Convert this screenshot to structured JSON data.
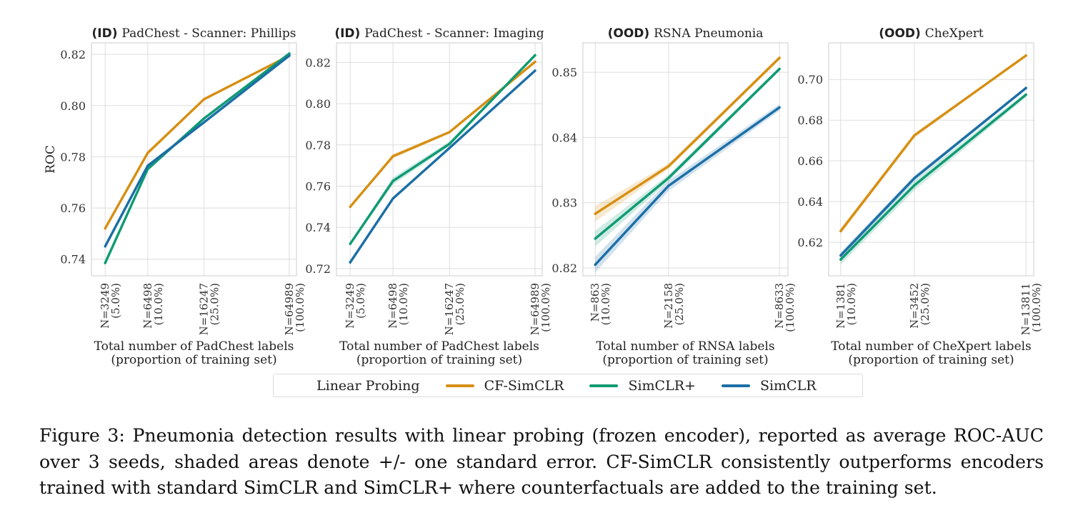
{
  "colors": {
    "CF-SimCLR": "#d68f12",
    "SimCLR+": "#0f9a73",
    "SimCLR": "#1b6ea6",
    "grid": "#dddddd",
    "axes": "#cccccc"
  },
  "legend": {
    "title": "Linear Probing",
    "items": [
      {
        "label": "CF-SimCLR",
        "color": "#d68f12"
      },
      {
        "label": "SimCLR+",
        "color": "#0f9a73"
      },
      {
        "label": "SimCLR",
        "color": "#1b6ea6"
      }
    ]
  },
  "caption": "Figure 3: Pneumonia detection results with linear probing (frozen encoder), reported as average ROC-AUC over 3 seeds, shaded areas denote +/- one standard error. CF-SimCLR consistently outperforms encoders trained with standard SimCLR and SimCLR+ where counterfactuals are added to the training set.",
  "chart_data": [
    {
      "type": "line",
      "title_prefix": "(ID)",
      "title": "PadChest - Scanner: Phillips",
      "ylabel": "ROC",
      "xlabel": [
        "Total number of PadChest labels",
        "(proportion of training set)"
      ],
      "x": [
        3249,
        6498,
        16247,
        64989
      ],
      "xtick_labels": [
        [
          "N=3249",
          "(5.0%)"
        ],
        [
          "N=6498",
          "(10.0%)"
        ],
        [
          "N=16247",
          "(25.0%)"
        ],
        [
          "N=64989",
          "(100.0%)"
        ]
      ],
      "xlim": [
        2600,
        73000
      ],
      "ylim": [
        0.7335,
        0.8245
      ],
      "yticks": [
        0.74,
        0.76,
        0.78,
        0.8,
        0.82
      ],
      "ytick_labels": [
        "0.74",
        "0.76",
        "0.78",
        "0.80",
        "0.82"
      ],
      "series": [
        {
          "name": "CF-SimCLR",
          "values": [
            0.752,
            0.7815,
            0.8025,
            0.8195
          ],
          "err": [
            0.0006,
            0.0008,
            0.0005,
            0.0004
          ]
        },
        {
          "name": "SimCLR+",
          "values": [
            0.7385,
            0.7752,
            0.795,
            0.8203
          ],
          "err": [
            0.0008,
            0.0008,
            0.0006,
            0.0004
          ]
        },
        {
          "name": "SimCLR",
          "values": [
            0.745,
            0.7765,
            0.7935,
            0.8195
          ],
          "err": [
            0.0005,
            0.0006,
            0.0005,
            0.0004
          ]
        }
      ]
    },
    {
      "type": "line",
      "title_prefix": "(ID)",
      "title": "PadChest - Scanner: Imaging",
      "ylabel": "",
      "xlabel": [
        "Total number of PadChest labels",
        "(proportion of training set)"
      ],
      "x": [
        3249,
        6498,
        16247,
        64989
      ],
      "xtick_labels": [
        [
          "N=3249",
          "(5.0%)"
        ],
        [
          "N=6498",
          "(10.0%)"
        ],
        [
          "N=16247",
          "(25.0%)"
        ],
        [
          "N=64989",
          "(100.0%)"
        ]
      ],
      "xlim": [
        2600,
        73000
      ],
      "ylim": [
        0.7165,
        0.8295
      ],
      "yticks": [
        0.72,
        0.74,
        0.76,
        0.78,
        0.8,
        0.82
      ],
      "ytick_labels": [
        "0.72",
        "0.74",
        "0.76",
        "0.78",
        "0.80",
        "0.82"
      ],
      "series": [
        {
          "name": "CF-SimCLR",
          "values": [
            0.75,
            0.7745,
            0.7862,
            0.8203
          ],
          "err": [
            0.0006,
            0.0012,
            0.0006,
            0.0005
          ]
        },
        {
          "name": "SimCLR+",
          "values": [
            0.732,
            0.7625,
            0.7805,
            0.8235
          ],
          "err": [
            0.0008,
            0.0018,
            0.0012,
            0.0006
          ]
        },
        {
          "name": "SimCLR",
          "values": [
            0.723,
            0.754,
            0.7785,
            0.816
          ],
          "err": [
            0.0005,
            0.0006,
            0.0006,
            0.0005
          ]
        }
      ]
    },
    {
      "type": "line",
      "title_prefix": "(OOD)",
      "title": "RSNA Pneumonia",
      "ylabel": "",
      "xlabel": [
        "Total number of RNSA labels",
        "(proportion of training set)"
      ],
      "x": [
        863,
        2158,
        8633
      ],
      "xtick_labels": [
        [
          "N=863",
          "(10.0%)"
        ],
        [
          "N=2158",
          "(25.0%)"
        ],
        [
          "N=8633",
          "(100.0%)"
        ]
      ],
      "xlim": [
        740,
        9600
      ],
      "ylim": [
        0.8188,
        0.8545
      ],
      "yticks": [
        0.82,
        0.83,
        0.84,
        0.85
      ],
      "ytick_labels": [
        "0.82",
        "0.83",
        "0.84",
        "0.85"
      ],
      "series": [
        {
          "name": "CF-SimCLR",
          "values": [
            0.8283,
            0.8356,
            0.8522
          ],
          "err": [
            0.0012,
            0.0004,
            0.0003
          ]
        },
        {
          "name": "SimCLR+",
          "values": [
            0.8245,
            0.8338,
            0.8505
          ],
          "err": [
            0.0012,
            0.0005,
            0.0003
          ]
        },
        {
          "name": "SimCLR",
          "values": [
            0.8205,
            0.8326,
            0.8446
          ],
          "err": [
            0.0012,
            0.0008,
            0.0005
          ]
        }
      ]
    },
    {
      "type": "line",
      "title_prefix": "(OOD)",
      "title": "CheXpert",
      "ylabel": "",
      "xlabel": [
        "Total number of CheXpert labels",
        "(proportion of training set)"
      ],
      "x": [
        1381,
        3452,
        13811
      ],
      "xtick_labels": [
        [
          "N=1381",
          "(10.0%)"
        ],
        [
          "N=3452",
          "(25.0%)"
        ],
        [
          "N=13811",
          "(100.0%)"
        ]
      ],
      "xlim": [
        1190,
        15200
      ],
      "ylim": [
        0.6035,
        0.718
      ],
      "yticks": [
        0.62,
        0.64,
        0.66,
        0.68,
        0.7
      ],
      "ytick_labels": [
        "0.62",
        "0.64",
        "0.66",
        "0.68",
        "0.70"
      ],
      "series": [
        {
          "name": "CF-SimCLR",
          "values": [
            0.6255,
            0.6725,
            0.7118
          ],
          "err": [
            0.0015,
            0.0012,
            0.0003
          ]
        },
        {
          "name": "SimCLR+",
          "values": [
            0.6115,
            0.648,
            0.6925
          ],
          "err": [
            0.0025,
            0.0025,
            0.0012
          ]
        },
        {
          "name": "SimCLR",
          "values": [
            0.6135,
            0.6515,
            0.6958
          ],
          "err": [
            0.0015,
            0.0012,
            0.0008
          ]
        }
      ]
    }
  ]
}
